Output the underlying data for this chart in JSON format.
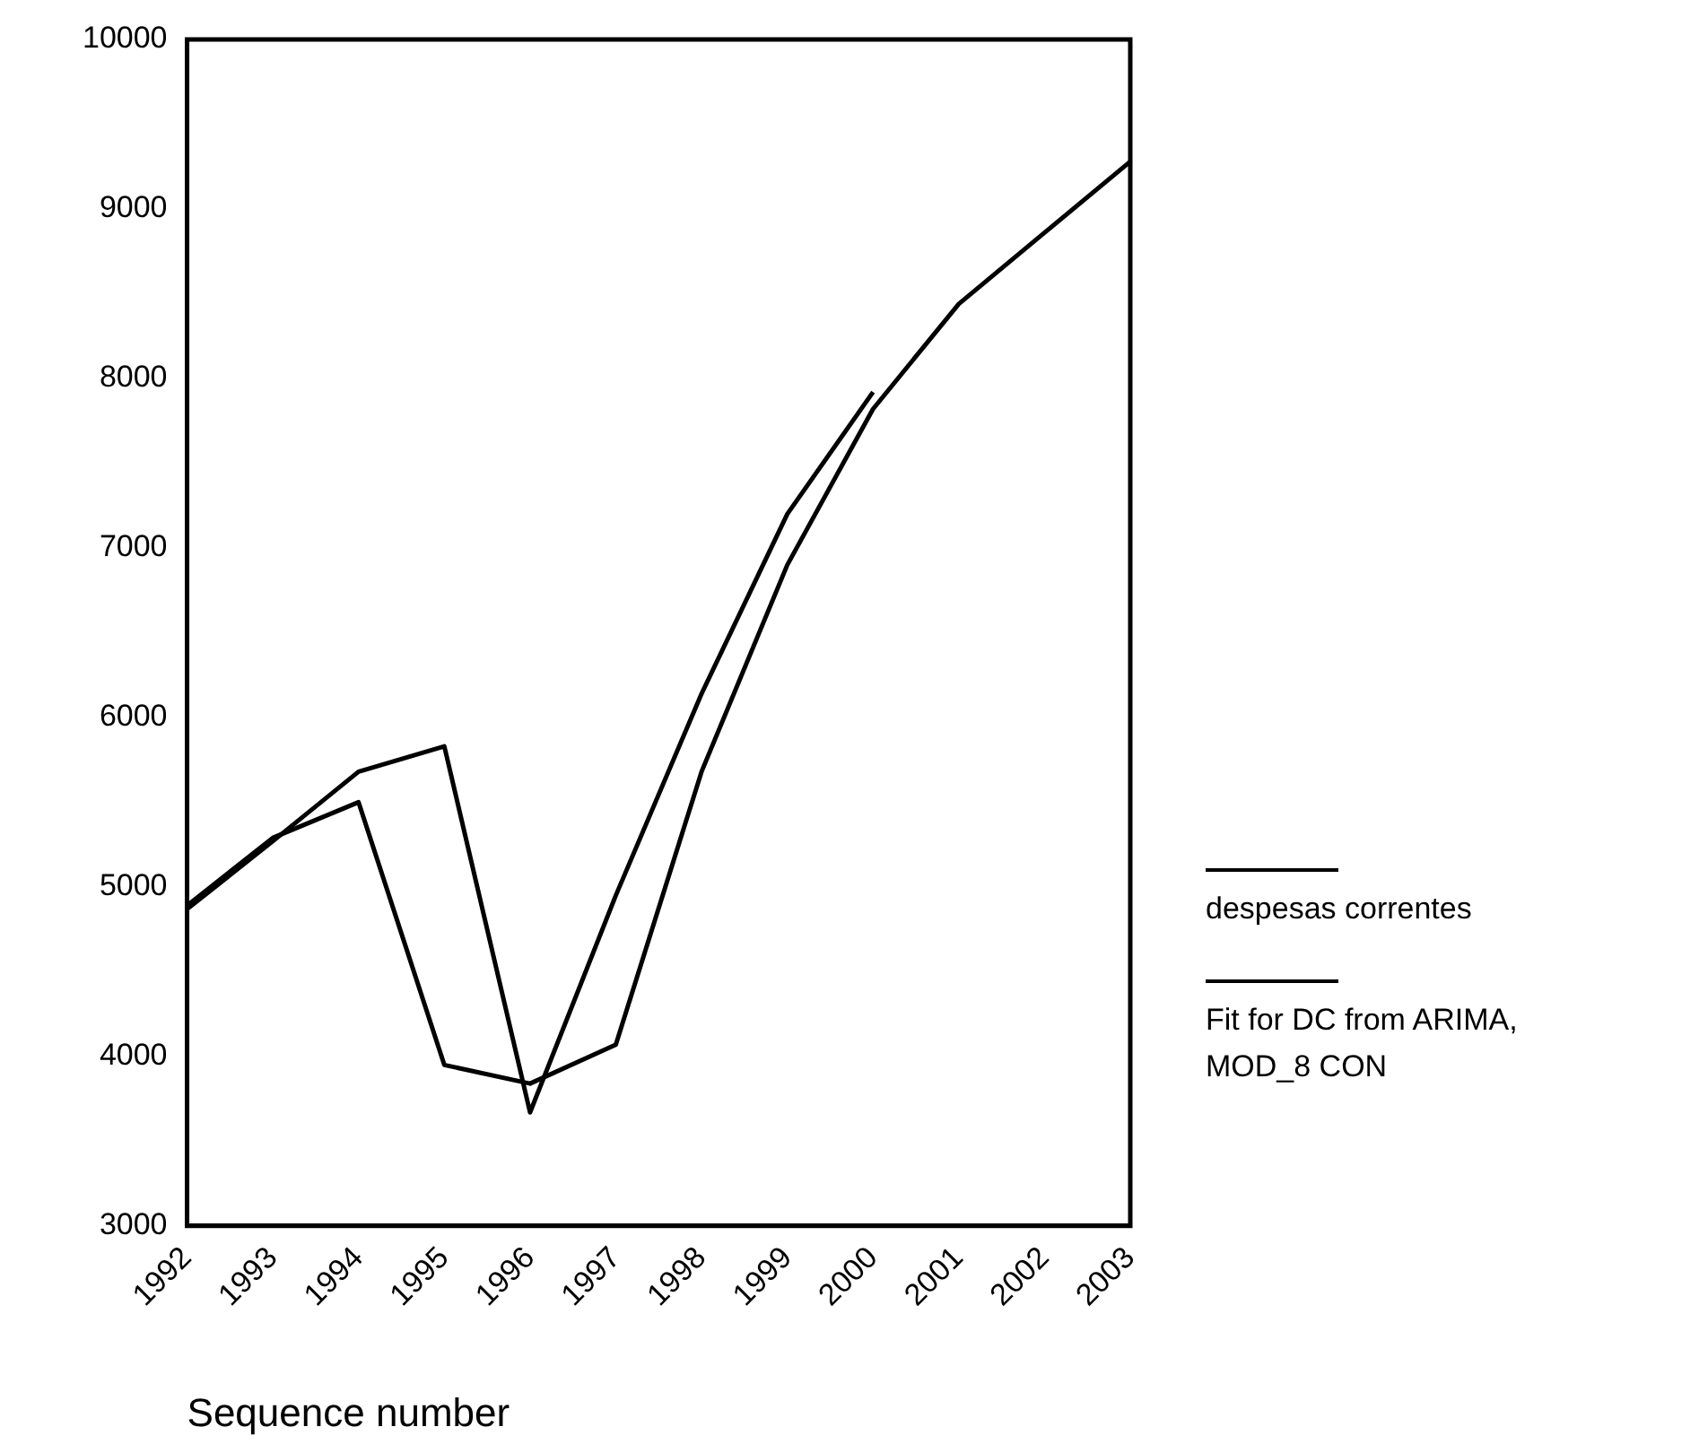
{
  "chart_data": {
    "type": "line",
    "xlabel": "Sequence number",
    "categories": [
      "1992",
      "1993",
      "1994",
      "1995",
      "1996",
      "1997",
      "1998",
      "1999",
      "2000",
      "2001",
      "2002",
      "2003"
    ],
    "series": [
      {
        "name": "despesas correntes",
        "color": "#000000",
        "values": [
          4890,
          5290,
          5500,
          3950,
          3840,
          4070,
          5680,
          6900,
          7820,
          8440,
          8860,
          9280
        ]
      },
      {
        "name": "Fit for DC from ARIMA, MOD_8 CON",
        "color": "#000000",
        "values": [
          4870,
          5270,
          5680,
          5830,
          3670,
          4950,
          6140,
          7200,
          7920,
          null,
          null,
          null
        ]
      }
    ],
    "ylim": [
      3000,
      10000
    ],
    "yticks": [
      3000,
      4000,
      5000,
      6000,
      7000,
      8000,
      9000,
      10000
    ],
    "marker": "none",
    "legend": "right"
  }
}
